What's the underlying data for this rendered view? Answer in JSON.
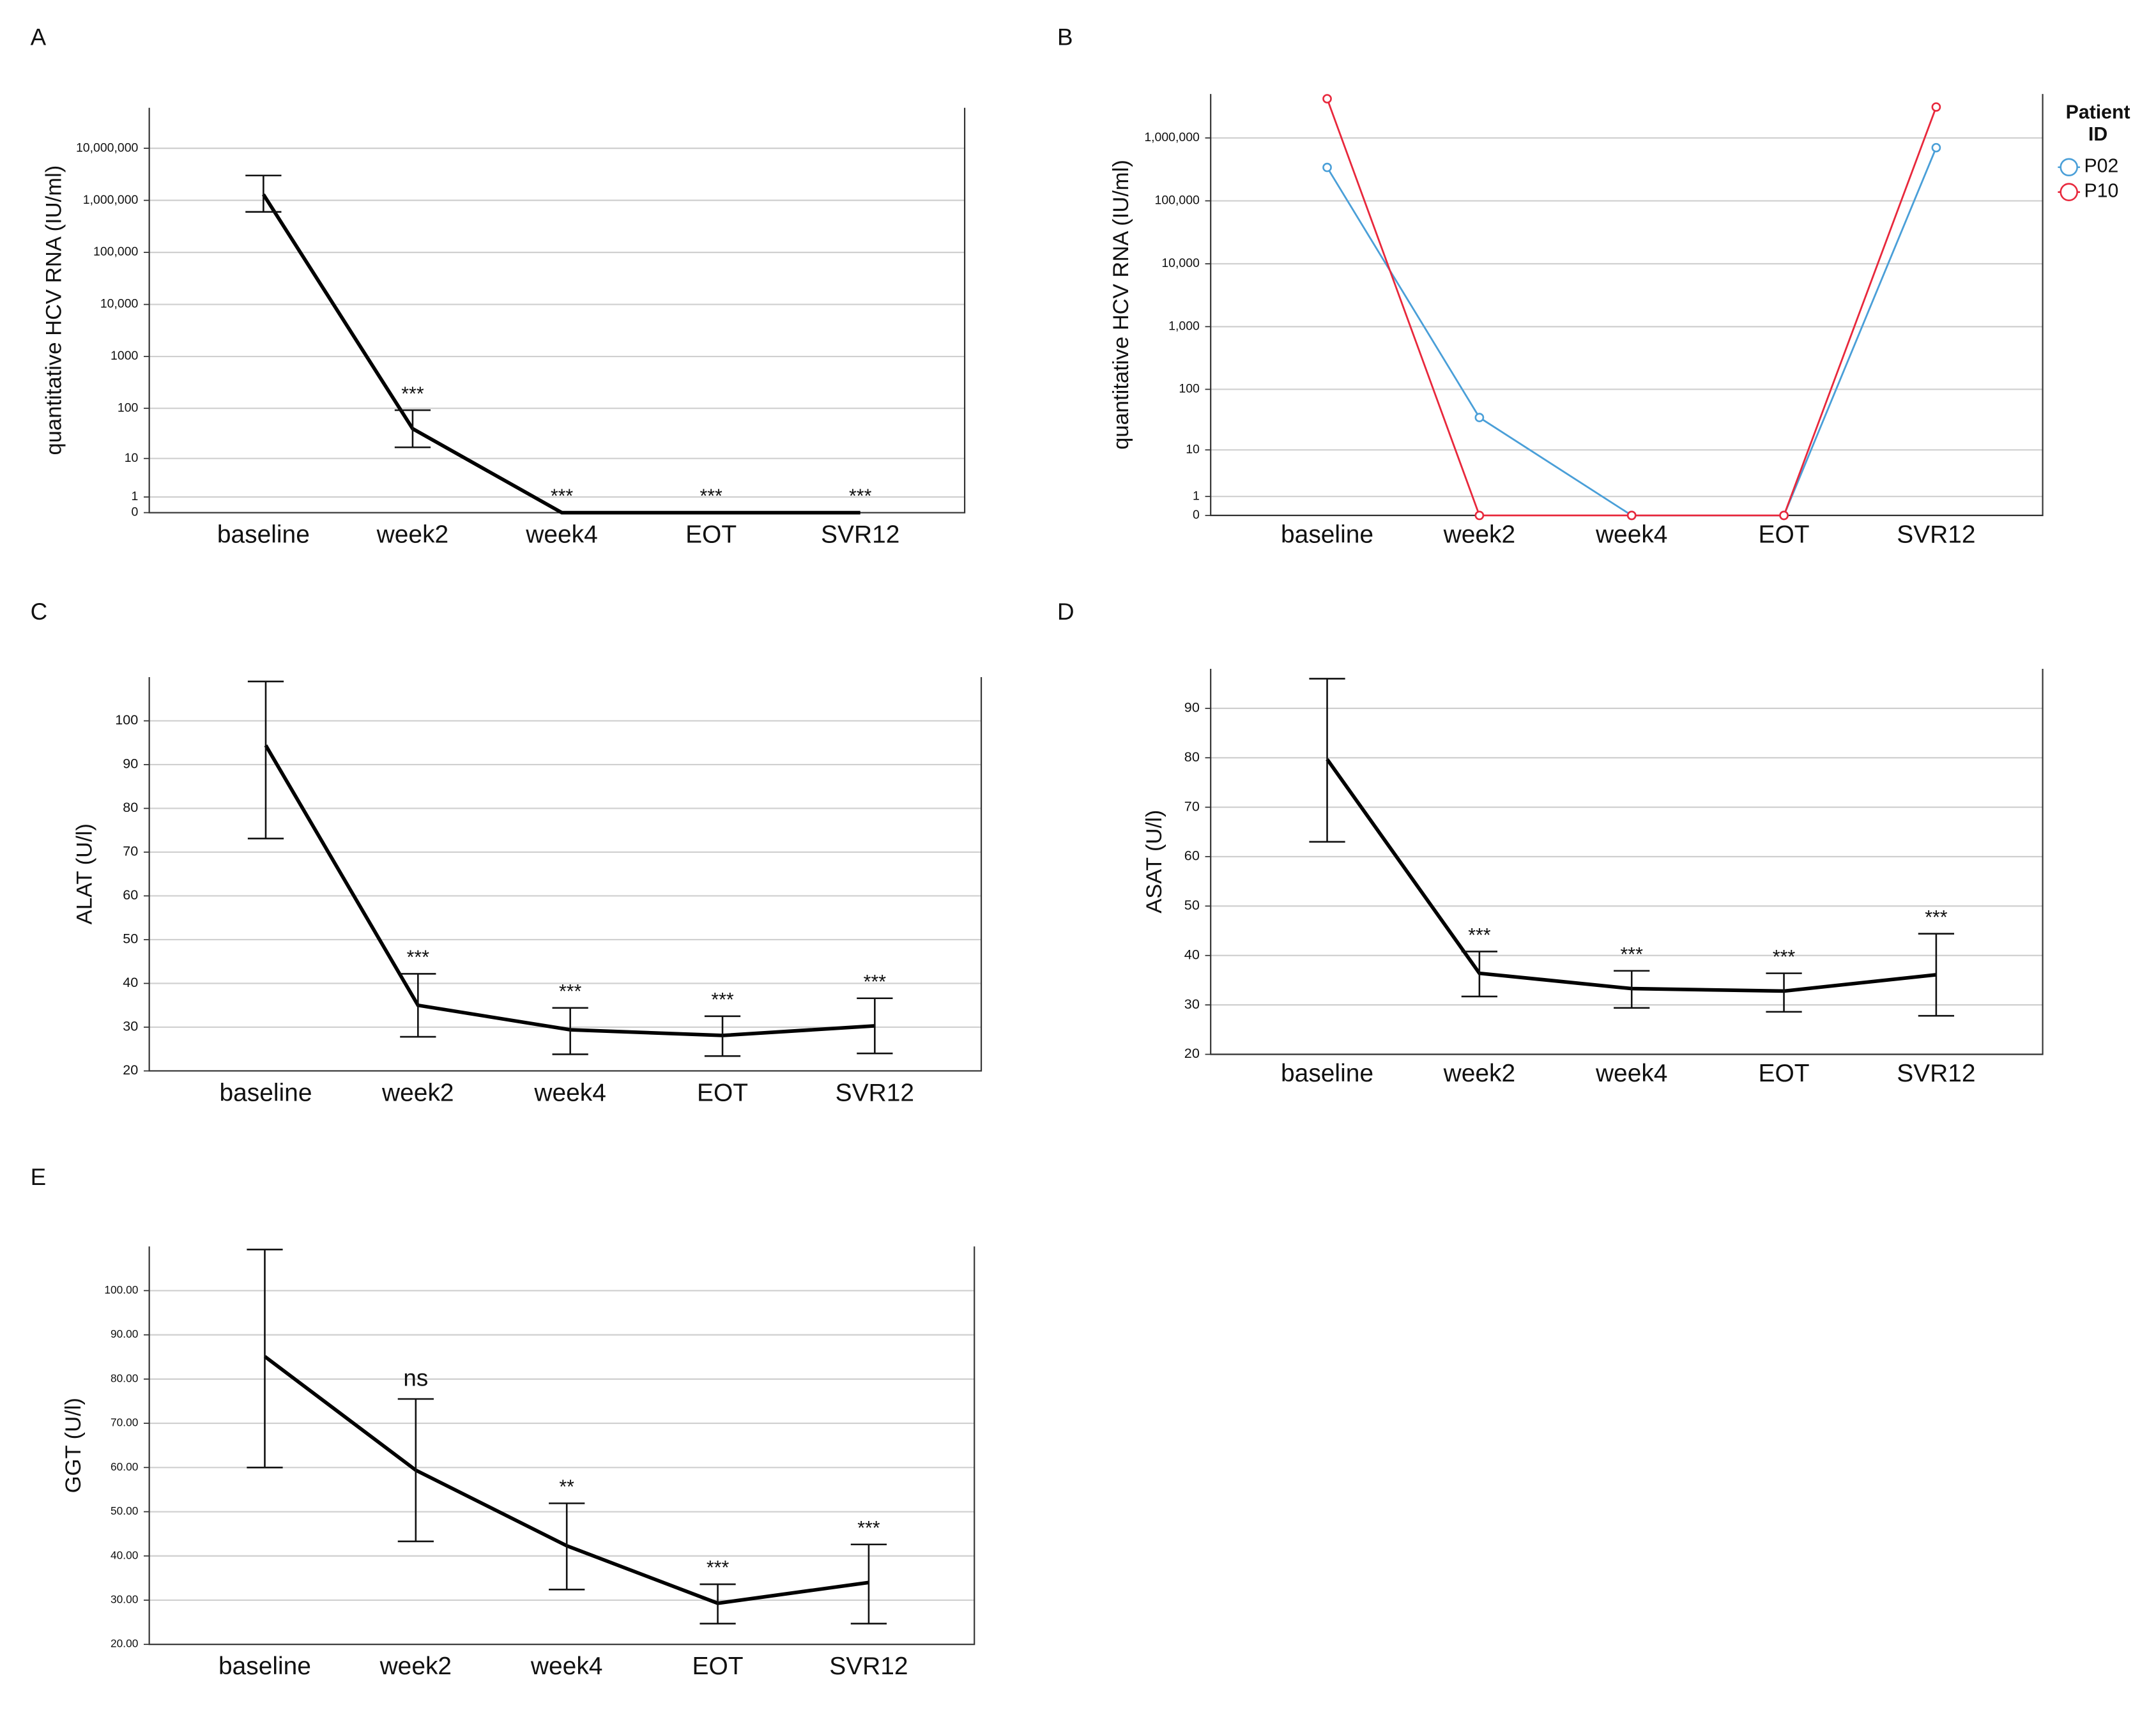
{
  "chart_data": [
    {
      "type": "line",
      "panel": "A",
      "ylabel": "quantitative HCV RNA (IU/ml)",
      "yscale": "log1p",
      "grid": true,
      "categories": [
        "baseline",
        "week2",
        "week4",
        "EOT",
        "SVR12"
      ],
      "ylim": [
        0,
        60000000
      ],
      "yticks": [
        0,
        1,
        10,
        100,
        1000,
        {
          "value": 10000,
          "label": "10,000"
        },
        {
          "value": 100000,
          "label": "100,000"
        },
        {
          "value": 1000000,
          "label": "1,000,000"
        },
        {
          "value": 10000000,
          "label": "10,000,000"
        }
      ],
      "series": [
        {
          "color": "#000000",
          "values": [
            1300000,
            40,
            0,
            0,
            0
          ],
          "lower": [
            600000,
            17,
            null,
            null,
            null
          ],
          "upper": [
            3000000,
            92,
            null,
            null,
            null
          ]
        }
      ],
      "annotations": [
        null,
        "***",
        "***",
        "***",
        "***"
      ]
    },
    {
      "type": "line",
      "panel": "B",
      "ylabel": "quantitative HCV RNA (IU/ml)",
      "yscale": "log1p",
      "grid": true,
      "markers": true,
      "categories": [
        "baseline",
        "week2",
        "week4",
        "EOT",
        "SVR12"
      ],
      "ylim": [
        0,
        5000000
      ],
      "yticks": [
        0,
        1,
        10,
        100,
        {
          "value": 1000,
          "label": "1,000"
        },
        {
          "value": 10000,
          "label": "10,000"
        },
        {
          "value": 100000,
          "label": "100,000"
        },
        {
          "value": 1000000,
          "label": "1,000,000"
        }
      ],
      "legend": "right",
      "legend_title": "Patient ID",
      "series": [
        {
          "name": "P02",
          "color": "#4a9fd8",
          "values": [
            340000,
            35,
            0,
            0,
            700000
          ]
        },
        {
          "name": "P10",
          "color": "#e8283c",
          "values": [
            4200000,
            0,
            0,
            0,
            3100000
          ]
        }
      ]
    },
    {
      "type": "line",
      "panel": "C",
      "ylabel": "ALAT (U/l)",
      "grid": true,
      "categories": [
        "baseline",
        "week2",
        "week4",
        "EOT",
        "SVR12"
      ],
      "ylim": [
        20,
        110
      ],
      "yticks": [
        20,
        30,
        40,
        50,
        60,
        70,
        80,
        90,
        100
      ],
      "series": [
        {
          "color": "#000000",
          "values": [
            94.4,
            35,
            29.4,
            28.1,
            30.3
          ],
          "lower": [
            73.1,
            27.8,
            23.8,
            23.4,
            24
          ],
          "upper": [
            109,
            42.2,
            34.4,
            32.5,
            36.6
          ]
        }
      ],
      "annotations": [
        null,
        "***",
        "***",
        "***",
        "***"
      ]
    },
    {
      "type": "line",
      "panel": "D",
      "ylabel": "ASAT (U/l)",
      "grid": true,
      "categories": [
        "baseline",
        "week2",
        "week4",
        "EOT",
        "SVR12"
      ],
      "ylim": [
        20,
        98
      ],
      "yticks": [
        20,
        30,
        40,
        50,
        60,
        70,
        80,
        90
      ],
      "series": [
        {
          "color": "#000000",
          "values": [
            79.7,
            36.4,
            33.3,
            32.8,
            36.1
          ],
          "lower": [
            63,
            31.7,
            29.4,
            28.6,
            27.8
          ],
          "upper": [
            96,
            40.8,
            36.9,
            36.4,
            44.4
          ]
        }
      ],
      "annotations": [
        null,
        "***",
        "***",
        "***",
        "***"
      ]
    },
    {
      "type": "line",
      "panel": "E",
      "ylabel": "GGT (U/l)",
      "grid": true,
      "categories": [
        "baseline",
        "week2",
        "week4",
        "EOT",
        "SVR12"
      ],
      "ylim": [
        20,
        110
      ],
      "yticks": [
        {
          "value": 20,
          "label": "20.00"
        },
        {
          "value": 30,
          "label": "30.00"
        },
        {
          "value": 40,
          "label": "40.00"
        },
        {
          "value": 50,
          "label": "50.00"
        },
        {
          "value": 60,
          "label": "60.00"
        },
        {
          "value": 70,
          "label": "70.00"
        },
        {
          "value": 80,
          "label": "80.00"
        },
        {
          "value": 90,
          "label": "90.00"
        },
        {
          "value": 100,
          "label": "100.00"
        }
      ],
      "series": [
        {
          "color": "#000000",
          "values": [
            85.1,
            59.4,
            42.3,
            29.3,
            34
          ],
          "lower": [
            60,
            43.3,
            32.4,
            24.7,
            24.7
          ],
          "upper": [
            109.3,
            75.5,
            51.9,
            33.6,
            42.6
          ]
        }
      ],
      "annotations": [
        null,
        "ns",
        "**",
        "***",
        "***"
      ]
    }
  ]
}
